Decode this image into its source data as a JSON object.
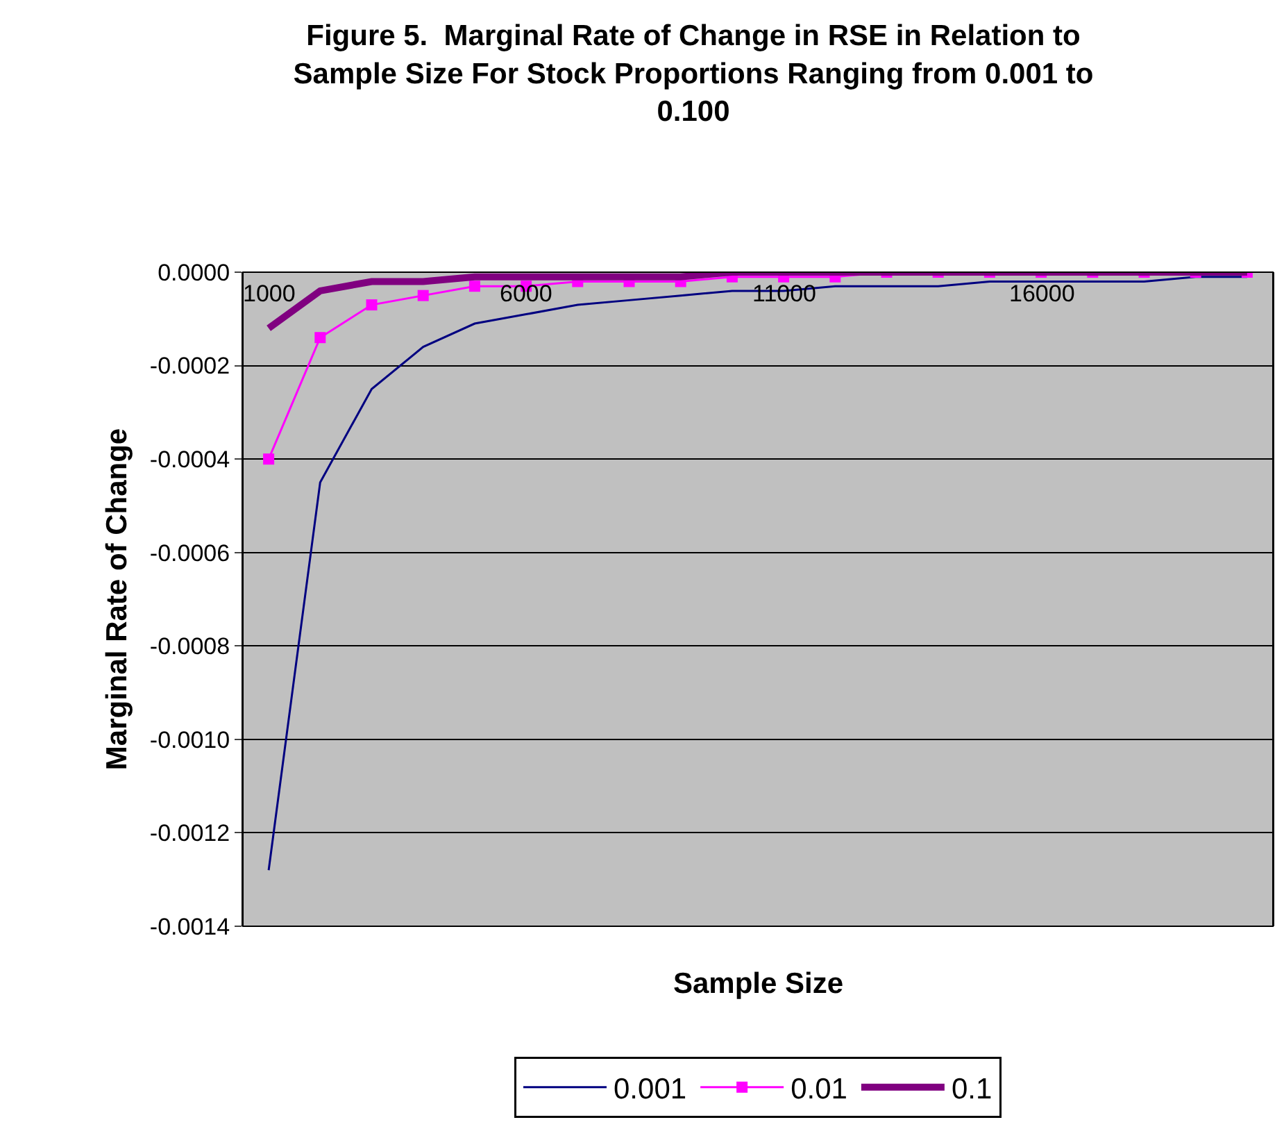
{
  "chart_data": {
    "type": "line",
    "title": "Figure 5.  Marginal Rate of Change in RSE in Relation to\nSample Size For Stock Proportions Ranging from 0.001 to\n0.100",
    "xlabel": "Sample Size",
    "ylabel": "Marginal Rate of Change",
    "categories": [
      "1000",
      null,
      null,
      null,
      null,
      "6000",
      null,
      null,
      null,
      null,
      "11000",
      null,
      null,
      null,
      null,
      "16000",
      null,
      null,
      null,
      null
    ],
    "series": [
      {
        "name": "0.001",
        "color": "#000080",
        "marker": "none",
        "values": [
          -0.00128,
          -0.00045,
          -0.00025,
          -0.00016,
          -0.00011,
          -9e-05,
          -7e-05,
          -6e-05,
          -5e-05,
          -4e-05,
          -4e-05,
          -3e-05,
          -3e-05,
          -3e-05,
          -2e-05,
          -2e-05,
          -2e-05,
          -2e-05,
          -1e-05,
          -1e-05
        ]
      },
      {
        "name": "0.01",
        "color": "#ff00ff",
        "marker": "square",
        "values": [
          -0.0004,
          -0.00014,
          -7e-05,
          -5e-05,
          -3e-05,
          -3e-05,
          -2e-05,
          -2e-05,
          -2e-05,
          -1e-05,
          -1e-05,
          -1e-05,
          0,
          0,
          0,
          0,
          0,
          0,
          0,
          0
        ]
      },
      {
        "name": "0.1",
        "color": "#800080",
        "marker": "none",
        "values": [
          -0.00012,
          -4e-05,
          -2e-05,
          -2e-05,
          -1e-05,
          -1e-05,
          -1e-05,
          -1e-05,
          -1e-05,
          0,
          0,
          0,
          0,
          0,
          0,
          0,
          0,
          0,
          0,
          0
        ]
      }
    ],
    "ylim": [
      -0.0014,
      0
    ],
    "yticks": [
      {
        "value": 0,
        "label": "0.0000"
      },
      {
        "value": -0.0002,
        "label": "-0.0002"
      },
      {
        "value": -0.0004,
        "label": "-0.0004"
      },
      {
        "value": -0.0006,
        "label": "-0.0006"
      },
      {
        "value": -0.0008,
        "label": "-0.0008"
      },
      {
        "value": -0.001,
        "label": "-0.0010"
      },
      {
        "value": -0.0012,
        "label": "-0.0012"
      },
      {
        "value": -0.0014,
        "label": "-0.0014"
      }
    ],
    "grid": "y",
    "legend": "bottom"
  }
}
